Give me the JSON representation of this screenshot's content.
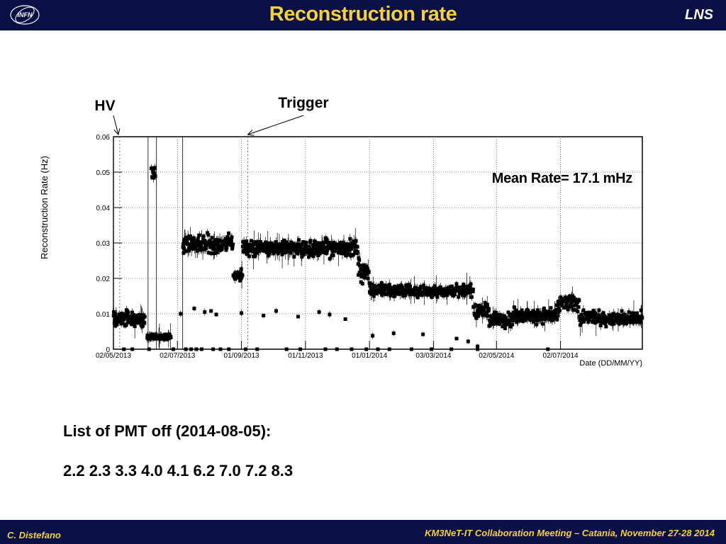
{
  "header": {
    "title": "Reconstruction rate",
    "lab": "LNS"
  },
  "footer": {
    "author": "C. Distefano",
    "meeting": "KM3NeT-IT Collaboration Meeting – Catania, November 27-28 2014"
  },
  "logo": {
    "icon": "infn-logo-icon",
    "text": "INFN"
  },
  "notes": {
    "heading": "List of PMT off (2014-08-05):",
    "pmt_list": "2.2 2.3 3.3 4.0 4.1 6.2 7.0 7.2 8.3"
  },
  "chart_data": {
    "type": "scatter",
    "ylabel": "Reconstruction Rate (Hz)",
    "xlabel": "Date (DD/MM/YY)",
    "ylim": [
      0,
      0.06
    ],
    "xlim": [
      "2013-05-02",
      "2014-09-18"
    ],
    "x_ticks": [
      "02/05/2013",
      "02/07/2013",
      "01/09/2013",
      "01/11/2013",
      "01/01/2014",
      "03/03/2014",
      "02/05/2014",
      "02/07/2014"
    ],
    "y_ticks": [
      "0",
      "0.01",
      "0.02",
      "0.03",
      "0.04",
      "0.05",
      "0.06"
    ],
    "grid": true,
    "annotation": "Mean Rate= 17.1 mHz",
    "markers": [
      {
        "label": "HV",
        "date": "2013-05-08"
      },
      {
        "label": "Trigger",
        "date": "2013-09-07"
      }
    ],
    "segments": [
      {
        "start": "2013-05-02",
        "end": "2013-06-01",
        "y": 0.0085,
        "spread": 0.0022
      },
      {
        "start": "2013-06-03",
        "end": "2013-06-26",
        "y": 0.0035,
        "spread": 0.0007
      },
      {
        "start": "2013-06-07",
        "end": "2013-06-11",
        "y": 0.05,
        "spread": 0.004
      },
      {
        "start": "2013-07-07",
        "end": "2013-08-24",
        "y": 0.0298,
        "spread": 0.0025
      },
      {
        "start": "2013-08-24",
        "end": "2013-09-02",
        "y": 0.021,
        "spread": 0.0015
      },
      {
        "start": "2013-09-02",
        "end": "2013-12-21",
        "y": 0.0285,
        "spread": 0.0022
      },
      {
        "start": "2013-12-21",
        "end": "2014-01-01",
        "y": 0.022,
        "spread": 0.0035
      },
      {
        "start": "2014-01-01",
        "end": "2014-01-15",
        "y": 0.0168,
        "spread": 0.0018
      },
      {
        "start": "2014-01-15",
        "end": "2014-04-10",
        "y": 0.0165,
        "spread": 0.0016
      },
      {
        "start": "2014-04-10",
        "end": "2014-04-25",
        "y": 0.011,
        "spread": 0.0025
      },
      {
        "start": "2014-04-25",
        "end": "2014-05-18",
        "y": 0.0085,
        "spread": 0.002
      },
      {
        "start": "2014-05-18",
        "end": "2014-06-30",
        "y": 0.0095,
        "spread": 0.0022
      },
      {
        "start": "2014-06-30",
        "end": "2014-07-20",
        "y": 0.013,
        "spread": 0.002
      },
      {
        "start": "2014-07-20",
        "end": "2014-09-18",
        "y": 0.0088,
        "spread": 0.0018
      }
    ],
    "low_points": [
      {
        "date": "2013-07-05",
        "y": 0.01
      },
      {
        "date": "2013-07-18",
        "y": 0.0115
      },
      {
        "date": "2013-07-28",
        "y": 0.0105
      },
      {
        "date": "2013-08-03",
        "y": 0.0108
      },
      {
        "date": "2013-08-08",
        "y": 0.0098
      },
      {
        "date": "2013-09-01",
        "y": 0.0102
      },
      {
        "date": "2013-09-22",
        "y": 0.0095
      },
      {
        "date": "2013-10-04",
        "y": 0.0108
      },
      {
        "date": "2013-10-25",
        "y": 0.0092
      },
      {
        "date": "2013-11-14",
        "y": 0.0105
      },
      {
        "date": "2013-11-24",
        "y": 0.0098
      },
      {
        "date": "2013-12-09",
        "y": 0.0085
      },
      {
        "date": "2014-01-04",
        "y": 0.0038
      },
      {
        "date": "2014-01-24",
        "y": 0.0045
      },
      {
        "date": "2014-02-21",
        "y": 0.0042
      },
      {
        "date": "2014-03-25",
        "y": 0.003
      },
      {
        "date": "2014-04-05",
        "y": 0.0022
      },
      {
        "date": "2014-04-14",
        "y": 0.0008
      }
    ],
    "zero_points": [
      "2013-05-12",
      "2013-05-20",
      "2013-06-05",
      "2013-06-28",
      "2013-07-10",
      "2013-07-15",
      "2013-07-20",
      "2013-07-25",
      "2013-08-05",
      "2013-08-12",
      "2013-08-20",
      "2013-09-05",
      "2013-09-16",
      "2013-10-14",
      "2013-10-27",
      "2013-11-20",
      "2013-12-01",
      "2013-12-15",
      "2013-12-29",
      "2014-01-09",
      "2014-01-20",
      "2014-02-10",
      "2014-03-01",
      "2014-03-20",
      "2014-04-14",
      "2014-06-20"
    ]
  }
}
